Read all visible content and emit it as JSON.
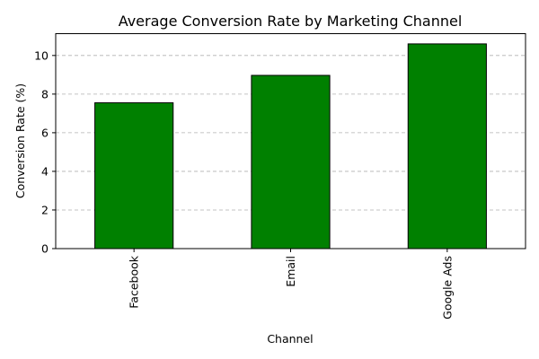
{
  "chart_data": {
    "type": "bar",
    "title": "Average Conversion Rate by Marketing Channel",
    "xlabel": "Channel",
    "ylabel": "Conversion Rate (%)",
    "categories": [
      "Facebook",
      "Email",
      "Google Ads"
    ],
    "values": [
      7.55,
      8.97,
      10.6
    ],
    "ylim": [
      0,
      11.13
    ],
    "yticks": [
      0,
      2,
      4,
      6,
      8,
      10
    ],
    "grid": "y-dashed",
    "legend": "none",
    "bar_color": "#008000",
    "bar_edge_color": "#000000",
    "grid_color": "#b0b0b0"
  }
}
